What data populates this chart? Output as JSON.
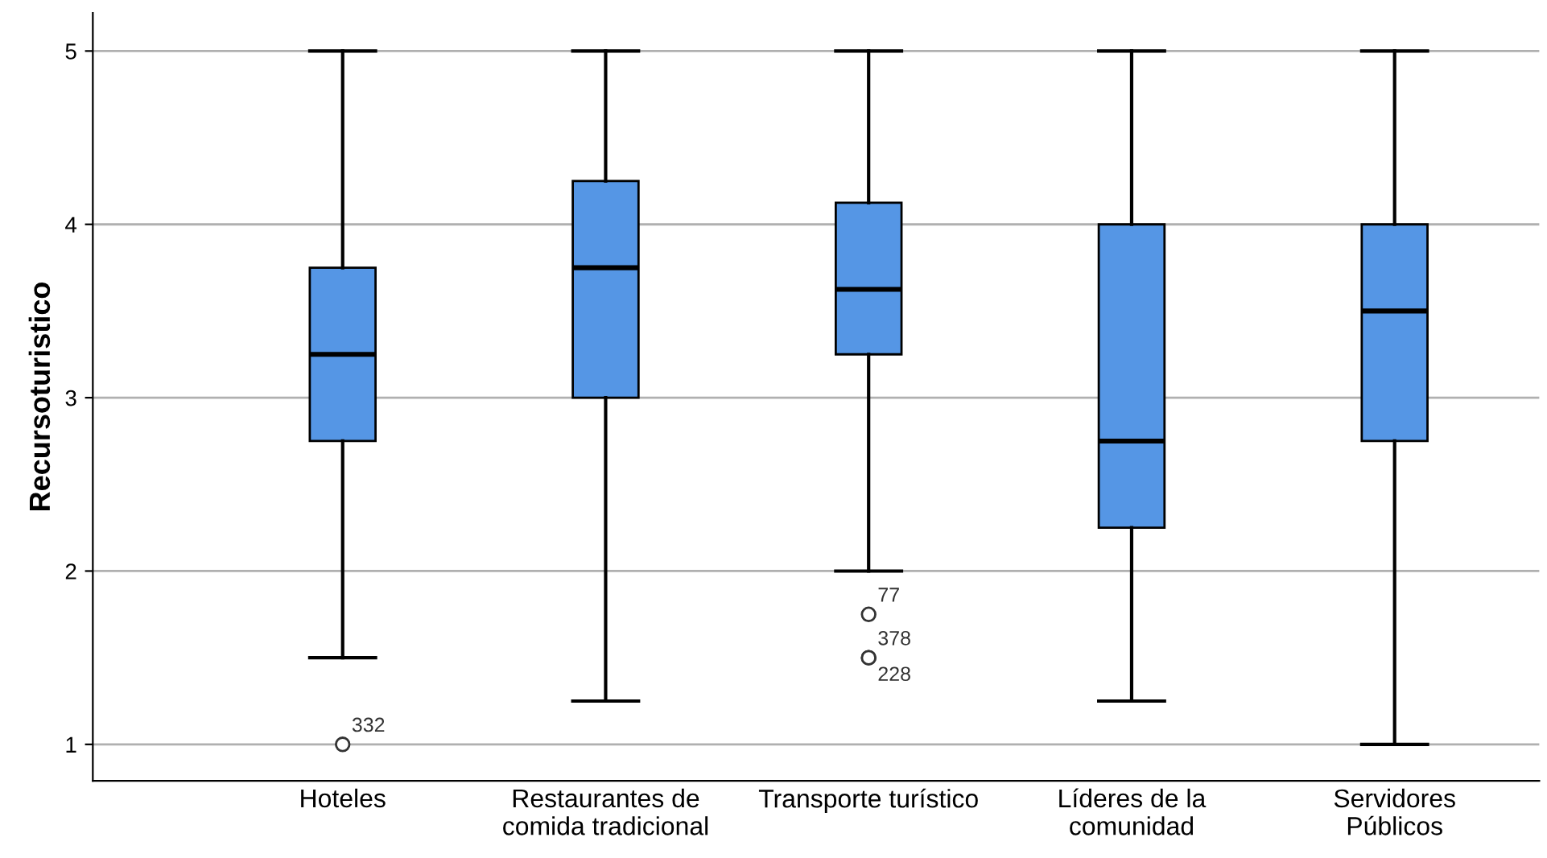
{
  "chart_data": {
    "type": "box",
    "ylabel": "Recursoturistico",
    "categories": [
      "Hoteles",
      "Restaurantes de\ncomida tradicional",
      "Transporte turístico",
      "Líderes de la\ncomunidad",
      "Servidores\nPúblicos"
    ],
    "boxes": [
      {
        "low": 1.5,
        "q1": 2.75,
        "median": 3.25,
        "q3": 3.75,
        "high": 5,
        "outliers": [
          1
        ]
      },
      {
        "low": 1.25,
        "q1": 3.0,
        "median": 3.75,
        "q3": 4.25,
        "high": 5
      },
      {
        "low": 2.0,
        "q1": 3.25,
        "median": 3.625,
        "q3": 4.125,
        "high": 5,
        "outliers": [
          1.75,
          1.5,
          1.5
        ]
      },
      {
        "low": 1.25,
        "q1": 2.25,
        "median": 2.75,
        "q3": 4.0,
        "high": 5
      },
      {
        "low": 1.0,
        "q1": 2.75,
        "median": 3.5,
        "q3": 4.0,
        "high": 5
      }
    ],
    "color": "#5596e5",
    "annotations": [
      "332",
      "77",
      "378",
      "228"
    ],
    "ylim": [
      0.79,
      5.22
    ],
    "yticks": [
      1,
      2,
      3,
      4,
      5
    ],
    "grid": "y"
  }
}
